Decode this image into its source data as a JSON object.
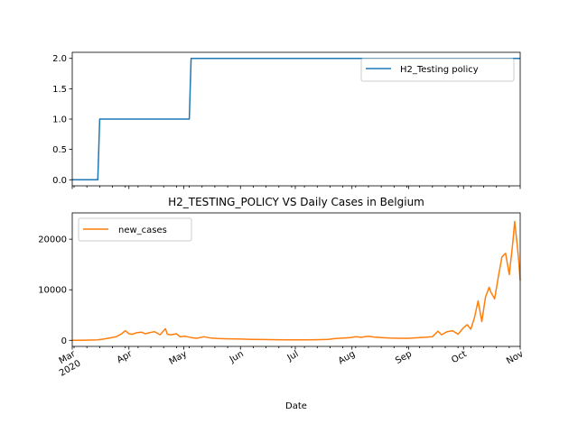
{
  "chart_data": [
    {
      "type": "line",
      "title": "",
      "xlabel": "",
      "ylabel": "",
      "ylim": [
        -0.1,
        2.1
      ],
      "yticks": [
        0.0,
        0.5,
        1.0,
        1.5,
        2.0
      ],
      "ytick_labels": [
        "0.0",
        "0.5",
        "1.0",
        "1.5",
        "2.0"
      ],
      "legend_position": "upper-right",
      "series": [
        {
          "name": "H2_Testing policy",
          "color": "#1f77b4",
          "step": true,
          "points": [
            [
              "2020-03-01",
              0
            ],
            [
              "2020-03-15",
              0
            ],
            [
              "2020-03-16",
              1
            ],
            [
              "2020-05-04",
              1
            ],
            [
              "2020-05-05",
              2
            ],
            [
              "2020-11-01",
              2
            ]
          ]
        }
      ]
    },
    {
      "type": "line",
      "title": "H2_TESTING_POLICY VS Daily Cases in Belgium",
      "xlabel": "Date",
      "ylabel": "",
      "ylim": [
        -1200,
        25200
      ],
      "yticks": [
        0,
        10000,
        20000
      ],
      "ytick_labels": [
        "0",
        "10000",
        "20000"
      ],
      "xtick_labels": [
        "Mar\n2020",
        "Apr",
        "May",
        "Jun",
        "Jul",
        "Aug",
        "Sep",
        "Oct",
        "Nov"
      ],
      "legend_position": "upper-left",
      "series": [
        {
          "name": "new_cases",
          "color": "#ff7f0e",
          "points": [
            [
              "2020-03-01",
              0
            ],
            [
              "2020-03-08",
              30
            ],
            [
              "2020-03-15",
              100
            ],
            [
              "2020-03-18",
              250
            ],
            [
              "2020-03-22",
              500
            ],
            [
              "2020-03-25",
              700
            ],
            [
              "2020-03-28",
              1300
            ],
            [
              "2020-03-30",
              1900
            ],
            [
              "2020-04-01",
              1300
            ],
            [
              "2020-04-03",
              1200
            ],
            [
              "2020-04-05",
              1500
            ],
            [
              "2020-04-08",
              1600
            ],
            [
              "2020-04-10",
              1300
            ],
            [
              "2020-04-12",
              1500
            ],
            [
              "2020-04-15",
              1700
            ],
            [
              "2020-04-18",
              1100
            ],
            [
              "2020-04-21",
              2300
            ],
            [
              "2020-04-22",
              1200
            ],
            [
              "2020-04-24",
              1100
            ],
            [
              "2020-04-27",
              1300
            ],
            [
              "2020-04-29",
              700
            ],
            [
              "2020-05-02",
              800
            ],
            [
              "2020-05-05",
              550
            ],
            [
              "2020-05-08",
              400
            ],
            [
              "2020-05-12",
              700
            ],
            [
              "2020-05-16",
              450
            ],
            [
              "2020-05-20",
              350
            ],
            [
              "2020-05-25",
              300
            ],
            [
              "2020-05-31",
              280
            ],
            [
              "2020-06-07",
              200
            ],
            [
              "2020-06-14",
              160
            ],
            [
              "2020-06-21",
              120
            ],
            [
              "2020-06-28",
              100
            ],
            [
              "2020-07-05",
              100
            ],
            [
              "2020-07-12",
              120
            ],
            [
              "2020-07-19",
              200
            ],
            [
              "2020-07-23",
              350
            ],
            [
              "2020-07-27",
              450
            ],
            [
              "2020-07-31",
              550
            ],
            [
              "2020-08-03",
              700
            ],
            [
              "2020-08-06",
              600
            ],
            [
              "2020-08-10",
              800
            ],
            [
              "2020-08-13",
              650
            ],
            [
              "2020-08-17",
              550
            ],
            [
              "2020-08-22",
              450
            ],
            [
              "2020-08-27",
              400
            ],
            [
              "2020-09-01",
              400
            ],
            [
              "2020-09-05",
              500
            ],
            [
              "2020-09-10",
              600
            ],
            [
              "2020-09-14",
              700
            ],
            [
              "2020-09-17",
              1800
            ],
            [
              "2020-09-19",
              1100
            ],
            [
              "2020-09-22",
              1700
            ],
            [
              "2020-09-25",
              1900
            ],
            [
              "2020-09-28",
              1200
            ],
            [
              "2020-10-01",
              2500
            ],
            [
              "2020-10-03",
              3100
            ],
            [
              "2020-10-05",
              2200
            ],
            [
              "2020-10-07",
              4500
            ],
            [
              "2020-10-09",
              7800
            ],
            [
              "2020-10-11",
              3700
            ],
            [
              "2020-10-13",
              8500
            ],
            [
              "2020-10-15",
              10500
            ],
            [
              "2020-10-16",
              9500
            ],
            [
              "2020-10-18",
              8200
            ],
            [
              "2020-10-20",
              12500
            ],
            [
              "2020-10-22",
              16500
            ],
            [
              "2020-10-24",
              17200
            ],
            [
              "2020-10-26",
              13000
            ],
            [
              "2020-10-28",
              19500
            ],
            [
              "2020-10-29",
              23500
            ],
            [
              "2020-10-30",
              20000
            ],
            [
              "2020-10-31",
              16500
            ],
            [
              "2020-11-01",
              11800
            ]
          ]
        }
      ]
    }
  ]
}
